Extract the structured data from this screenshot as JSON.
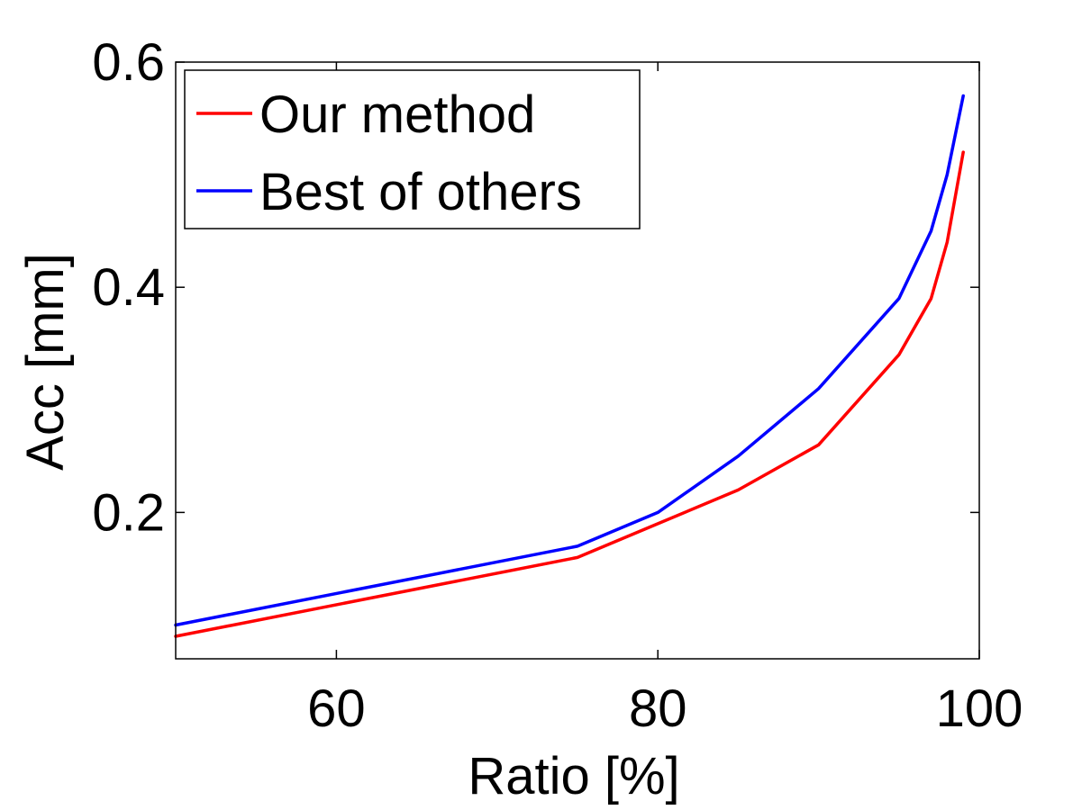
{
  "chart_data": {
    "type": "line",
    "title": "",
    "xlabel": "Ratio [%]",
    "ylabel": "Acc [mm]",
    "xlim": [
      50,
      100
    ],
    "ylim": [
      0.07,
      0.6
    ],
    "xticks": [
      60,
      80,
      100
    ],
    "xtick_labels": [
      "60",
      "80",
      "100"
    ],
    "yticks": [
      0.2,
      0.4,
      0.6
    ],
    "ytick_labels": [
      "0.2",
      "0.4",
      "0.6"
    ],
    "grid": false,
    "legend_position": "top-left",
    "series": [
      {
        "name": "Our method",
        "color": "#ff0000",
        "x": [
          50,
          75,
          80,
          85,
          90,
          95,
          97,
          98,
          99
        ],
        "y": [
          0.09,
          0.16,
          0.19,
          0.22,
          0.26,
          0.34,
          0.39,
          0.44,
          0.52
        ]
      },
      {
        "name": "Best of others",
        "color": "#0000ff",
        "x": [
          50,
          75,
          80,
          85,
          90,
          95,
          97,
          98,
          99
        ],
        "y": [
          0.1,
          0.17,
          0.2,
          0.25,
          0.31,
          0.39,
          0.45,
          0.5,
          0.57
        ]
      }
    ]
  }
}
